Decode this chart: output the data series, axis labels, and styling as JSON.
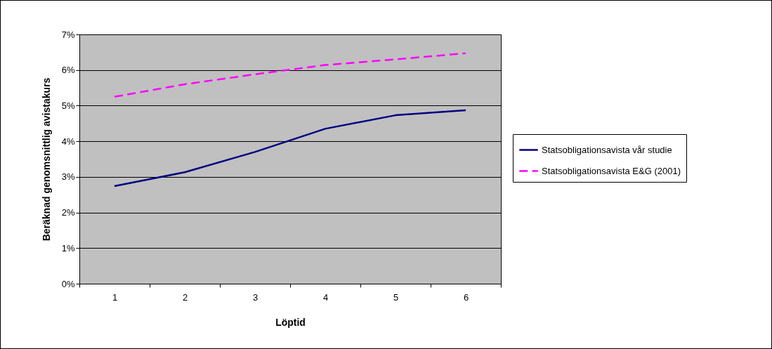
{
  "chart_data": {
    "type": "line",
    "xlabel": "Löptid",
    "ylabel": "Beräknad genomsnittlig avistakurs",
    "categories": [
      "1",
      "2",
      "3",
      "4",
      "5",
      "6"
    ],
    "series": [
      {
        "name": "Statsobligationsavista vår studie",
        "color": "#000080",
        "line_style": "solid",
        "values": [
          2.74,
          3.13,
          3.7,
          4.35,
          4.73,
          4.87
        ]
      },
      {
        "name": "Statsobligationsavista E&G (2001)",
        "color": "#ff00ff",
        "line_style": "dashed",
        "values": [
          5.25,
          5.6,
          5.88,
          6.14,
          6.3,
          6.47
        ]
      }
    ],
    "ylim": [
      0,
      7
    ],
    "yticks": [
      {
        "value": 0,
        "label": "0%"
      },
      {
        "value": 1,
        "label": "1%"
      },
      {
        "value": 2,
        "label": "2%"
      },
      {
        "value": 3,
        "label": "3%"
      },
      {
        "value": 4,
        "label": "4%"
      },
      {
        "value": 5,
        "label": "5%"
      },
      {
        "value": 6,
        "label": "6%"
      },
      {
        "value": 7,
        "label": "7%"
      }
    ],
    "grid": "y",
    "legend": "right",
    "marker": "none"
  }
}
